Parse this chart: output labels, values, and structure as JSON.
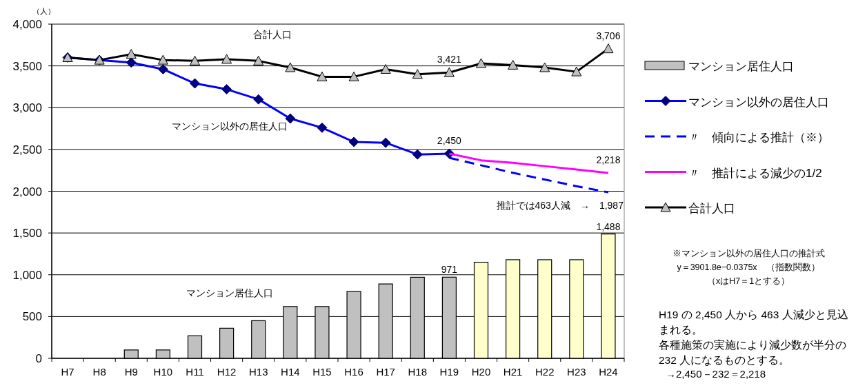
{
  "chart_data": {
    "type": "bar",
    "ylabel": "（人）",
    "categories": [
      "H7",
      "H8",
      "H9",
      "H10",
      "H11",
      "H12",
      "H13",
      "H14",
      "H15",
      "H16",
      "H17",
      "H18",
      "H19",
      "H20",
      "H21",
      "H22",
      "H23",
      "H24"
    ],
    "ylim": [
      0,
      4000
    ],
    "yticks": [
      0,
      500,
      {
        "value": 1000,
        "label": "1,000"
      },
      {
        "value": 1500,
        "label": "1,500"
      },
      {
        "value": 2000,
        "label": "2,000"
      },
      {
        "value": 2500,
        "label": "2,500"
      },
      {
        "value": 3000,
        "label": "3,000"
      },
      {
        "value": 3500,
        "label": "3,500"
      },
      {
        "value": 4000,
        "label": "4,000"
      }
    ],
    "grid": "y",
    "legend": "right",
    "series": [
      {
        "name": "マンション居住人口",
        "color": "#c0c0c0",
        "colors": [
          "#c0c0c0",
          "#c0c0c0",
          "#c0c0c0",
          "#c0c0c0",
          "#c0c0c0",
          "#c0c0c0",
          "#c0c0c0",
          "#c0c0c0",
          "#c0c0c0",
          "#c0c0c0",
          "#c0c0c0",
          "#c0c0c0",
          "#c0c0c0",
          "#ffffcc",
          "#ffffcc",
          "#ffffcc",
          "#ffffcc",
          "#ffffcc"
        ],
        "values": [
          null,
          null,
          100,
          100,
          270,
          360,
          450,
          620,
          620,
          800,
          890,
          970,
          971,
          1150,
          1180,
          1180,
          1180,
          1488
        ],
        "value_labels": [
          null,
          null,
          null,
          null,
          null,
          null,
          null,
          null,
          null,
          null,
          null,
          null,
          "971",
          null,
          null,
          null,
          null,
          "1,488"
        ]
      },
      {
        "name": "マンション以外の居住人口",
        "type": "line",
        "color": "#0000ff",
        "marker": "diamond",
        "line_style": "solid",
        "values": [
          3600,
          3570,
          3540,
          3460,
          3290,
          3220,
          3100,
          2870,
          2760,
          2590,
          2580,
          2440,
          2450,
          null,
          null,
          null,
          null,
          null
        ],
        "value_labels": [
          null,
          null,
          null,
          null,
          null,
          null,
          null,
          null,
          null,
          null,
          null,
          null,
          "2,450",
          null,
          null,
          null,
          null,
          null
        ]
      },
      {
        "name": "〃　傾向による推計（※）",
        "type": "line",
        "color": "#0000ff",
        "marker": "none",
        "line_style": "dashed",
        "values": [
          null,
          null,
          null,
          null,
          null,
          null,
          null,
          null,
          null,
          null,
          null,
          null,
          2400,
          2310,
          2220,
          2140,
          2060,
          1987
        ]
      },
      {
        "name": "〃　推計による減少の1/2",
        "type": "line",
        "color": "#ff00ff",
        "marker": "none",
        "line_style": "solid",
        "values": [
          null,
          null,
          null,
          null,
          null,
          null,
          null,
          null,
          null,
          null,
          null,
          null,
          2450,
          2370,
          2340,
          2300,
          2260,
          2218
        ],
        "value_labels": [
          null,
          null,
          null,
          null,
          null,
          null,
          null,
          null,
          null,
          null,
          null,
          null,
          null,
          null,
          null,
          null,
          null,
          "2,218"
        ]
      },
      {
        "name": "合計人口",
        "type": "line",
        "color": "#000000",
        "marker": "triangle",
        "line_style": "solid",
        "values": [
          3600,
          3570,
          3640,
          3570,
          3560,
          3580,
          3560,
          3480,
          3370,
          3370,
          3460,
          3400,
          3421,
          3530,
          3510,
          3480,
          3430,
          3706
        ],
        "value_labels": [
          null,
          null,
          null,
          null,
          null,
          null,
          null,
          null,
          null,
          null,
          null,
          null,
          "3,421",
          null,
          null,
          null,
          null,
          "3,706"
        ]
      }
    ],
    "annotations": [
      "合計人口",
      "マンション以外の居住人口",
      "マンション居住人口",
      {
        "text": "推計では463人減　→　1,987",
        "x": "H24",
        "y": 1987
      },
      "※マンション以外の居住人口の推計式",
      "y＝3901.8e−0.0375x　（指数関数）",
      "（xはH7＝1とする）",
      "H19 の 2,450 人から 463 人減少と見込まれる。",
      "各種施策の実施により減少数が半分の 232 人になるものとする。",
      "→2,450－232＝2,218"
    ]
  }
}
